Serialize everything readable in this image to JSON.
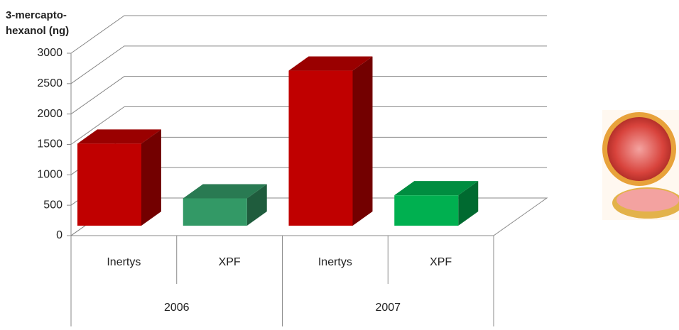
{
  "chart_data": {
    "type": "bar3d",
    "y_label": [
      "3-mercapto-",
      "hexanol  (ng)"
    ],
    "categories": [
      "Inertys",
      "XPF",
      "Inertys",
      "XPF"
    ],
    "groups": [
      "2006",
      "2007"
    ],
    "values": [
      1350,
      450,
      2550,
      500
    ],
    "colors": [
      "#c00000",
      "#339966",
      "#c00000",
      "#00b050"
    ],
    "ylim": [
      0,
      3000
    ],
    "yticks": [
      0,
      500,
      1000,
      1500,
      2000,
      2500,
      3000
    ],
    "grid": true
  }
}
